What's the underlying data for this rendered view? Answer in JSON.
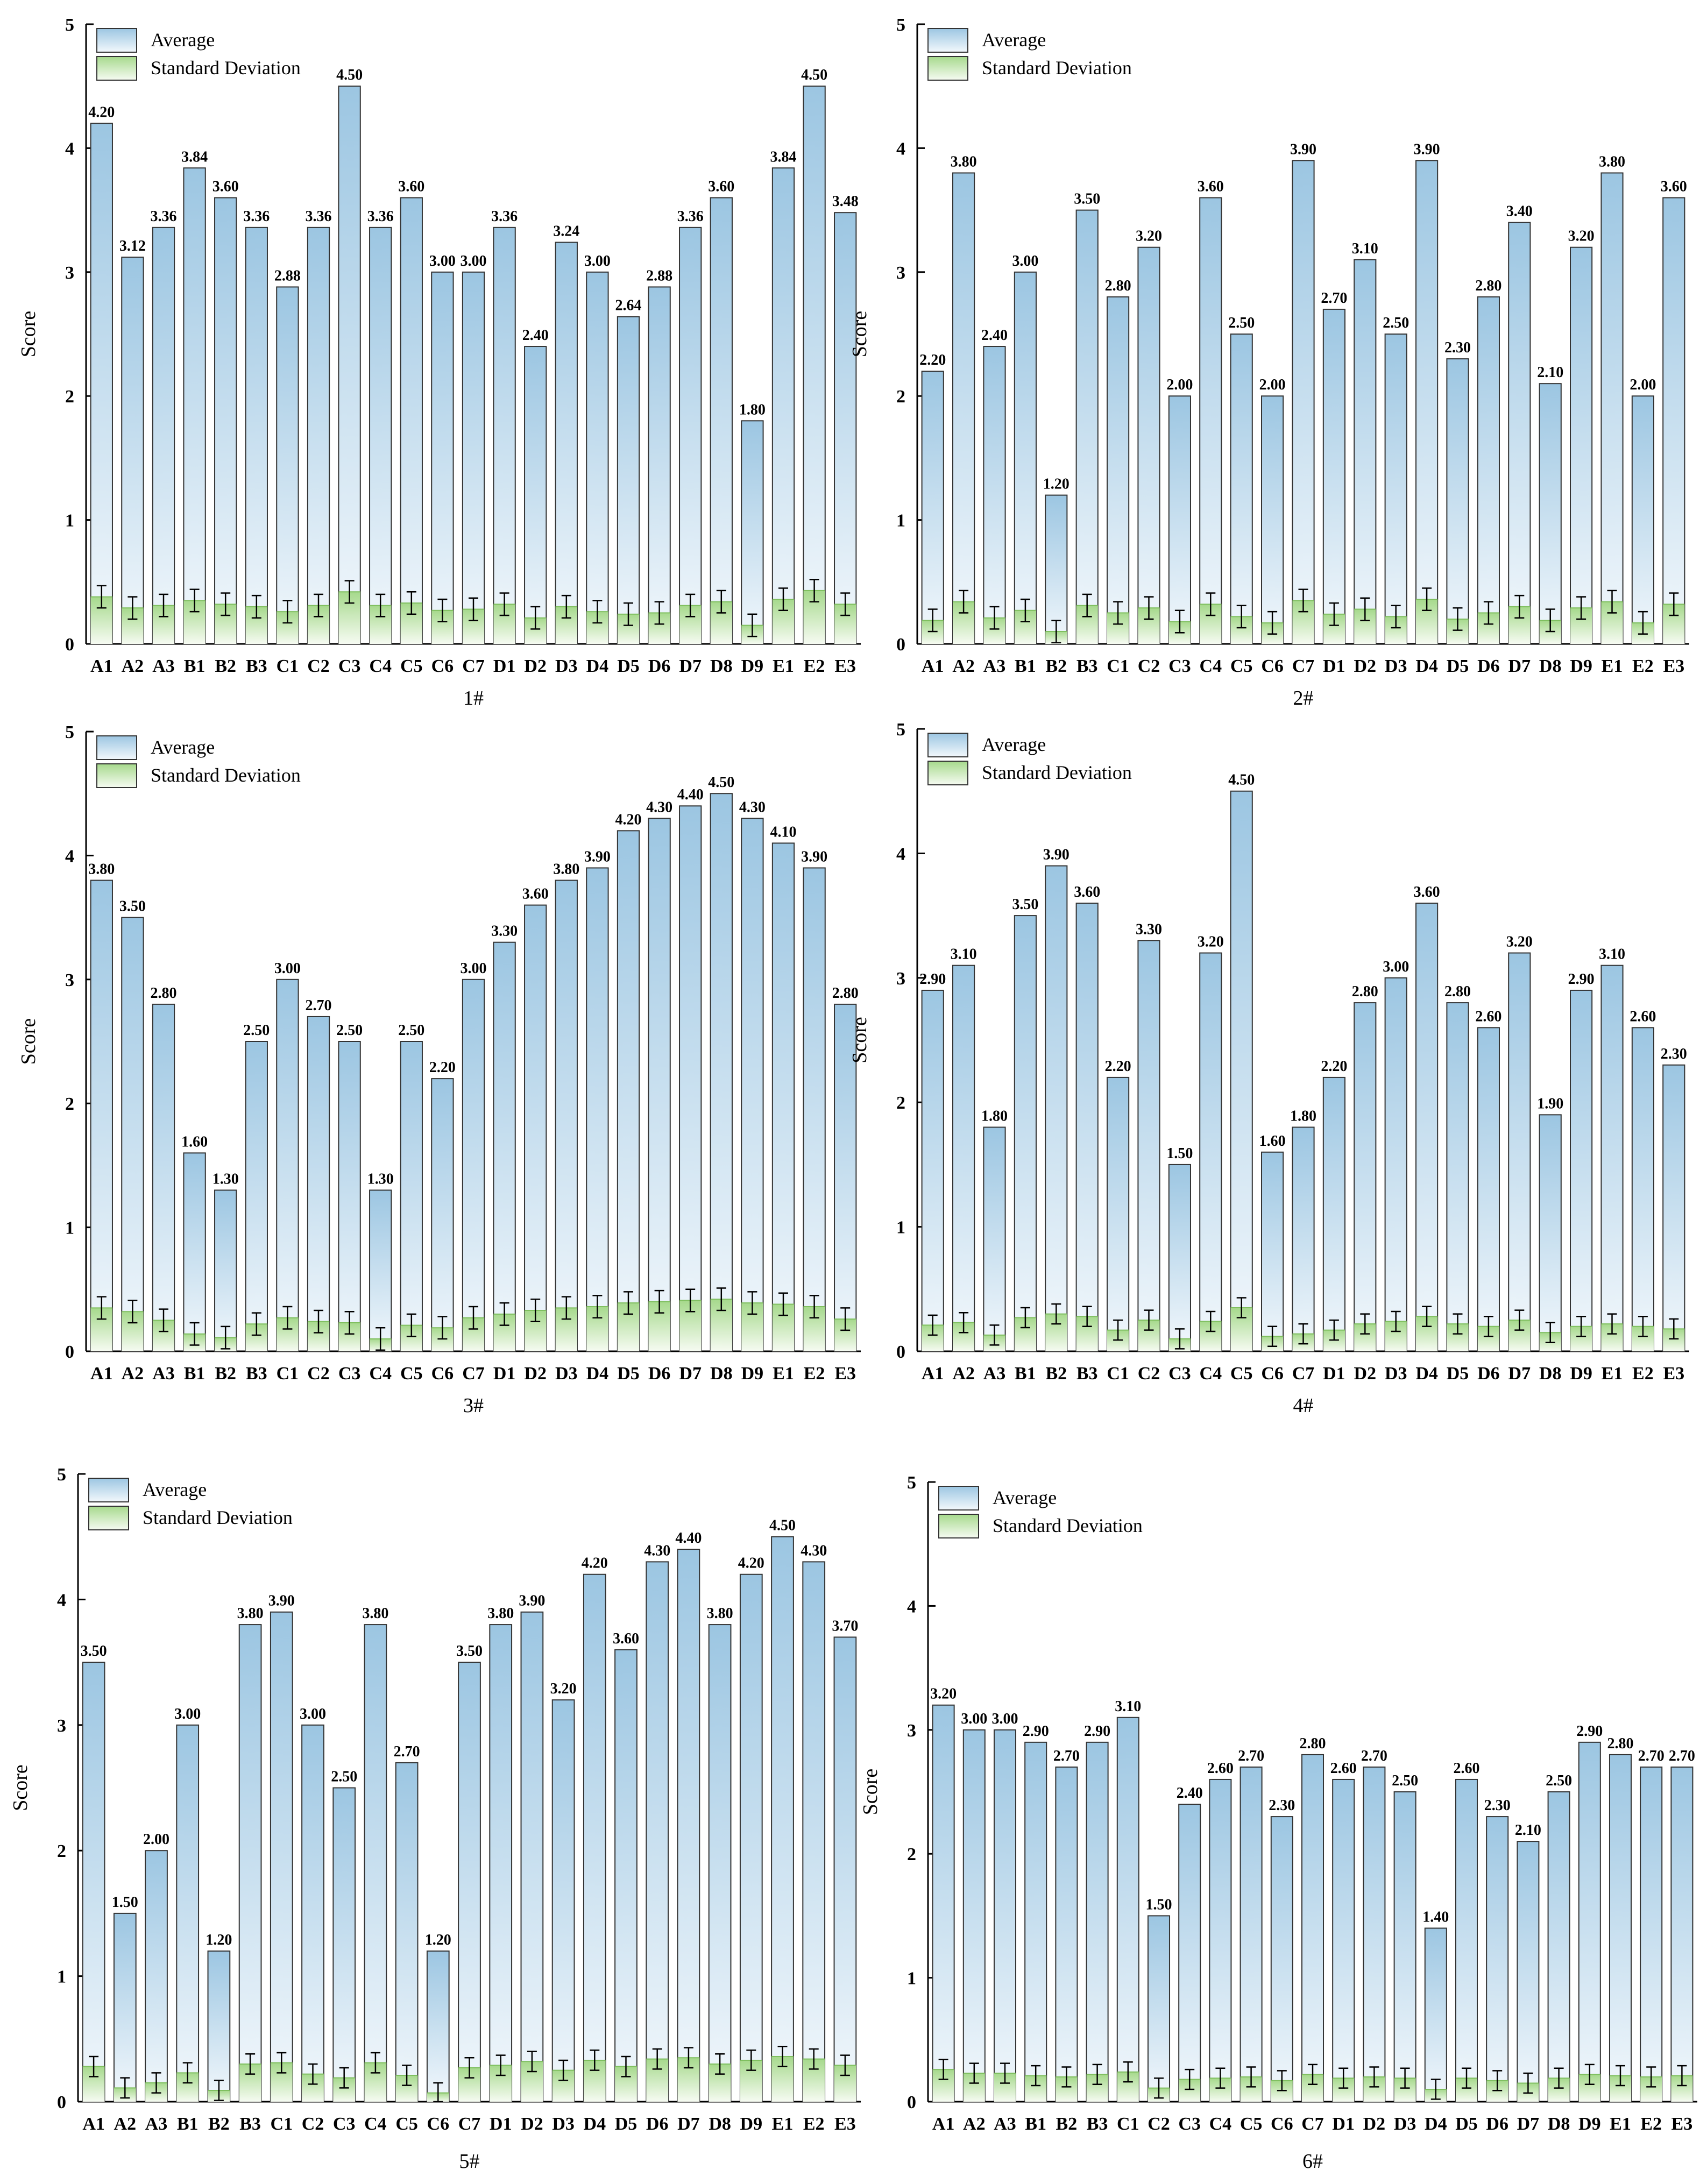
{
  "colors": {
    "avg_top": "#9cc6e2",
    "avg_bottom": "#f3f8fc",
    "sd_top": "#a6d98c",
    "sd_bottom": "#f6fbf2",
    "stroke": "#333333"
  },
  "legend": {
    "average": "Average",
    "std": "Standard Deviation"
  },
  "chart_data": [
    {
      "type": "bar",
      "title": "1#",
      "ylabel": "Score",
      "ylim": [
        0,
        5
      ],
      "yticks": [
        0,
        1,
        2,
        3,
        4,
        5
      ],
      "categories": [
        "A1",
        "A2",
        "A3",
        "B1",
        "B2",
        "B3",
        "C1",
        "C2",
        "C3",
        "C4",
        "C5",
        "C6",
        "C7",
        "D1",
        "D2",
        "D3",
        "D4",
        "D5",
        "D6",
        "D7",
        "D8",
        "D9",
        "E1",
        "E2",
        "E3"
      ],
      "series": [
        {
          "name": "Average",
          "values": [
            4.2,
            3.12,
            3.36,
            3.84,
            3.6,
            3.36,
            2.88,
            3.36,
            4.5,
            3.36,
            3.6,
            3.0,
            3.0,
            3.36,
            2.4,
            3.24,
            3.0,
            2.64,
            2.88,
            3.36,
            3.6,
            1.8,
            3.84,
            4.5,
            3.48
          ],
          "labels": [
            "4.20",
            "3.12",
            "3.36",
            "3.84",
            "3.60",
            "3.36",
            "2.88",
            "3.36",
            "4.50",
            "3.36",
            "3.60",
            "3.00",
            "3.00",
            "3.36",
            "2.40",
            "3.24",
            "3.00",
            "2.64",
            "2.88",
            "3.36",
            "3.60",
            "1.80",
            "3.84",
            "4.50",
            "3.48"
          ]
        },
        {
          "name": "Standard Deviation",
          "values": [
            0.38,
            0.29,
            0.31,
            0.35,
            0.32,
            0.3,
            0.26,
            0.31,
            0.42,
            0.31,
            0.33,
            0.27,
            0.28,
            0.32,
            0.21,
            0.3,
            0.26,
            0.24,
            0.25,
            0.31,
            0.34,
            0.15,
            0.36,
            0.43,
            0.32
          ],
          "error": [
            0.09,
            0.09,
            0.09,
            0.09,
            0.09,
            0.09,
            0.09,
            0.09,
            0.09,
            0.09,
            0.09,
            0.09,
            0.09,
            0.09,
            0.09,
            0.09,
            0.09,
            0.09,
            0.09,
            0.09,
            0.09,
            0.09,
            0.09,
            0.09,
            0.09
          ]
        }
      ]
    },
    {
      "type": "bar",
      "title": "2#",
      "ylabel": "Score",
      "ylim": [
        0,
        5
      ],
      "yticks": [
        0,
        1,
        2,
        3,
        4,
        5
      ],
      "categories": [
        "A1",
        "A2",
        "A3",
        "B1",
        "B2",
        "B3",
        "C1",
        "C2",
        "C3",
        "C4",
        "C5",
        "C6",
        "C7",
        "D1",
        "D2",
        "D3",
        "D4",
        "D5",
        "D6",
        "D7",
        "D8",
        "D9",
        "E1",
        "E2",
        "E3"
      ],
      "series": [
        {
          "name": "Average",
          "values": [
            2.2,
            3.8,
            2.4,
            3.0,
            1.2,
            3.5,
            2.8,
            3.2,
            2.0,
            3.6,
            2.5,
            2.0,
            3.9,
            2.7,
            3.1,
            2.5,
            3.9,
            2.3,
            2.8,
            3.4,
            2.1,
            3.2,
            3.8,
            2.0,
            3.6
          ],
          "labels": [
            "2.20",
            "3.80",
            "2.40",
            "3.00",
            "1.20",
            "3.50",
            "2.80",
            "3.20",
            "2.00",
            "3.60",
            "2.50",
            "2.00",
            "3.90",
            "2.70",
            "3.10",
            "2.50",
            "3.90",
            "2.30",
            "2.80",
            "3.40",
            "2.10",
            "3.20",
            "3.80",
            "2.00",
            "3.60"
          ]
        },
        {
          "name": "Standard Deviation",
          "values": [
            0.19,
            0.34,
            0.21,
            0.27,
            0.1,
            0.31,
            0.25,
            0.29,
            0.18,
            0.32,
            0.22,
            0.17,
            0.35,
            0.24,
            0.28,
            0.22,
            0.36,
            0.2,
            0.25,
            0.3,
            0.19,
            0.29,
            0.34,
            0.17,
            0.32
          ],
          "error": [
            0.09,
            0.09,
            0.09,
            0.09,
            0.09,
            0.09,
            0.09,
            0.09,
            0.09,
            0.09,
            0.09,
            0.09,
            0.09,
            0.09,
            0.09,
            0.09,
            0.09,
            0.09,
            0.09,
            0.09,
            0.09,
            0.09,
            0.09,
            0.09,
            0.09
          ]
        }
      ]
    },
    {
      "type": "bar",
      "title": "3#",
      "ylabel": "Score",
      "ylim": [
        0,
        5
      ],
      "yticks": [
        0,
        1,
        2,
        3,
        4,
        5
      ],
      "categories": [
        "A1",
        "A2",
        "A3",
        "B1",
        "B2",
        "B3",
        "C1",
        "C2",
        "C3",
        "C4",
        "C5",
        "C6",
        "C7",
        "D1",
        "D2",
        "D3",
        "D4",
        "D5",
        "D6",
        "D7",
        "D8",
        "D9",
        "E1",
        "E2",
        "E3"
      ],
      "series": [
        {
          "name": "Average",
          "values": [
            3.8,
            3.5,
            2.8,
            1.6,
            1.3,
            2.5,
            3.0,
            2.7,
            2.5,
            1.3,
            2.5,
            2.2,
            3.0,
            3.3,
            3.6,
            3.8,
            3.9,
            4.2,
            4.3,
            4.4,
            4.5,
            4.3,
            4.1,
            3.9,
            2.8
          ],
          "labels": [
            "3.80",
            "3.50",
            "2.80",
            "1.60",
            "1.30",
            "2.50",
            "3.00",
            "2.70",
            "2.50",
            "1.30",
            "2.50",
            "2.20",
            "3.00",
            "3.30",
            "3.60",
            "3.80",
            "3.90",
            "4.20",
            "4.30",
            "4.40",
            "4.50",
            "4.30",
            "4.10",
            "3.90",
            "2.80"
          ]
        },
        {
          "name": "Standard Deviation",
          "values": [
            0.35,
            0.32,
            0.25,
            0.14,
            0.11,
            0.22,
            0.27,
            0.24,
            0.23,
            0.1,
            0.21,
            0.19,
            0.27,
            0.3,
            0.33,
            0.35,
            0.36,
            0.39,
            0.4,
            0.41,
            0.42,
            0.39,
            0.38,
            0.36,
            0.26
          ],
          "error": [
            0.09,
            0.09,
            0.09,
            0.09,
            0.09,
            0.09,
            0.09,
            0.09,
            0.09,
            0.09,
            0.09,
            0.09,
            0.09,
            0.09,
            0.09,
            0.09,
            0.09,
            0.09,
            0.09,
            0.09,
            0.09,
            0.09,
            0.09,
            0.09,
            0.09
          ]
        }
      ]
    },
    {
      "type": "bar",
      "title": "4#",
      "ylabel": "Score",
      "ylim": [
        0,
        5
      ],
      "yticks": [
        0,
        1,
        2,
        3,
        4,
        5
      ],
      "categories": [
        "A1",
        "A2",
        "A3",
        "B1",
        "B2",
        "B3",
        "C1",
        "C2",
        "C3",
        "C4",
        "C5",
        "C6",
        "C7",
        "D1",
        "D2",
        "D3",
        "D4",
        "D5",
        "D6",
        "D7",
        "D8",
        "D9",
        "E1",
        "E2",
        "E3"
      ],
      "series": [
        {
          "name": "Average",
          "values": [
            2.9,
            3.1,
            1.8,
            3.5,
            3.9,
            3.6,
            2.2,
            3.3,
            1.5,
            3.2,
            4.5,
            1.6,
            1.8,
            2.2,
            2.8,
            3.0,
            3.6,
            2.8,
            2.6,
            3.2,
            1.9,
            2.9,
            3.1,
            2.6,
            2.3
          ],
          "labels": [
            "2.90",
            "3.10",
            "1.80",
            "3.50",
            "3.90",
            "3.60",
            "2.20",
            "3.30",
            "1.50",
            "3.20",
            "4.50",
            "1.60",
            "1.80",
            "2.20",
            "2.80",
            "3.00",
            "3.60",
            "2.80",
            "2.60",
            "3.20",
            "1.90",
            "2.90",
            "3.10",
            "2.60",
            "2.30"
          ]
        },
        {
          "name": "Standard Deviation",
          "values": [
            0.21,
            0.23,
            0.13,
            0.27,
            0.3,
            0.28,
            0.17,
            0.25,
            0.1,
            0.24,
            0.35,
            0.12,
            0.14,
            0.17,
            0.22,
            0.24,
            0.28,
            0.22,
            0.2,
            0.25,
            0.15,
            0.2,
            0.22,
            0.2,
            0.18
          ],
          "error": [
            0.08,
            0.08,
            0.08,
            0.08,
            0.08,
            0.08,
            0.08,
            0.08,
            0.08,
            0.08,
            0.08,
            0.08,
            0.08,
            0.08,
            0.08,
            0.08,
            0.08,
            0.08,
            0.08,
            0.08,
            0.08,
            0.08,
            0.08,
            0.08,
            0.08
          ]
        }
      ]
    },
    {
      "type": "bar",
      "title": "5#",
      "ylabel": "Score",
      "ylim": [
        0,
        5
      ],
      "yticks": [
        0,
        1,
        2,
        3,
        4,
        5
      ],
      "categories": [
        "A1",
        "A2",
        "A3",
        "B1",
        "B2",
        "B3",
        "C1",
        "C2",
        "C3",
        "C4",
        "C5",
        "C6",
        "C7",
        "D1",
        "D2",
        "D3",
        "D4",
        "D5",
        "D6",
        "D7",
        "D8",
        "D9",
        "E1",
        "E2",
        "E3"
      ],
      "series": [
        {
          "name": "Average",
          "values": [
            3.5,
            1.5,
            2.0,
            3.0,
            1.2,
            3.8,
            3.9,
            3.0,
            2.5,
            3.8,
            2.7,
            1.2,
            3.5,
            3.8,
            3.9,
            3.2,
            4.2,
            3.6,
            4.3,
            4.4,
            3.8,
            4.2,
            4.5,
            4.3,
            3.7
          ],
          "labels": [
            "3.50",
            "1.50",
            "2.00",
            "3.00",
            "1.20",
            "3.80",
            "3.90",
            "3.00",
            "2.50",
            "3.80",
            "2.70",
            "1.20",
            "3.50",
            "3.80",
            "3.90",
            "3.20",
            "4.20",
            "3.60",
            "4.30",
            "4.40",
            "3.80",
            "4.20",
            "4.50",
            "4.30",
            "3.70"
          ]
        },
        {
          "name": "Standard Deviation",
          "values": [
            0.28,
            0.11,
            0.15,
            0.23,
            0.09,
            0.3,
            0.31,
            0.22,
            0.19,
            0.31,
            0.21,
            0.07,
            0.27,
            0.29,
            0.32,
            0.25,
            0.33,
            0.28,
            0.34,
            0.35,
            0.3,
            0.33,
            0.36,
            0.34,
            0.29
          ],
          "error": [
            0.08,
            0.08,
            0.08,
            0.08,
            0.08,
            0.08,
            0.08,
            0.08,
            0.08,
            0.08,
            0.08,
            0.08,
            0.08,
            0.08,
            0.08,
            0.08,
            0.08,
            0.08,
            0.08,
            0.08,
            0.08,
            0.08,
            0.08,
            0.08,
            0.08
          ]
        }
      ]
    },
    {
      "type": "bar",
      "title": "6#",
      "ylabel": "Score",
      "ylim": [
        0,
        5
      ],
      "yticks": [
        0,
        1,
        2,
        3,
        4,
        5
      ],
      "categories": [
        "A1",
        "A2",
        "A3",
        "B1",
        "B2",
        "B3",
        "C1",
        "C2",
        "C3",
        "C4",
        "C5",
        "C6",
        "C7",
        "D1",
        "D2",
        "D3",
        "D4",
        "D5",
        "D6",
        "D7",
        "D8",
        "D9",
        "E1",
        "E2",
        "E3"
      ],
      "series": [
        {
          "name": "Average",
          "values": [
            3.2,
            3.0,
            3.0,
            2.9,
            2.7,
            2.9,
            3.1,
            1.5,
            2.4,
            2.6,
            2.7,
            2.3,
            2.8,
            2.6,
            2.7,
            2.5,
            1.4,
            2.6,
            2.3,
            2.1,
            2.5,
            2.9,
            2.8,
            2.7,
            2.7
          ],
          "labels": [
            "3.20",
            "3.00",
            "3.00",
            "2.90",
            "2.70",
            "2.90",
            "3.10",
            "1.50",
            "2.40",
            "2.60",
            "2.70",
            "2.30",
            "2.80",
            "2.60",
            "2.70",
            "2.50",
            "1.40",
            "2.60",
            "2.30",
            "2.10",
            "2.50",
            "2.90",
            "2.80",
            "2.70",
            "2.70"
          ]
        },
        {
          "name": "Standard Deviation",
          "values": [
            0.26,
            0.23,
            0.23,
            0.21,
            0.2,
            0.22,
            0.24,
            0.11,
            0.18,
            0.19,
            0.2,
            0.17,
            0.22,
            0.19,
            0.2,
            0.19,
            0.1,
            0.19,
            0.17,
            0.15,
            0.19,
            0.22,
            0.21,
            0.2,
            0.21
          ],
          "error": [
            0.08,
            0.08,
            0.08,
            0.08,
            0.08,
            0.08,
            0.08,
            0.08,
            0.08,
            0.08,
            0.08,
            0.08,
            0.08,
            0.08,
            0.08,
            0.08,
            0.08,
            0.08,
            0.08,
            0.08,
            0.08,
            0.08,
            0.08,
            0.08,
            0.08
          ]
        }
      ]
    }
  ]
}
